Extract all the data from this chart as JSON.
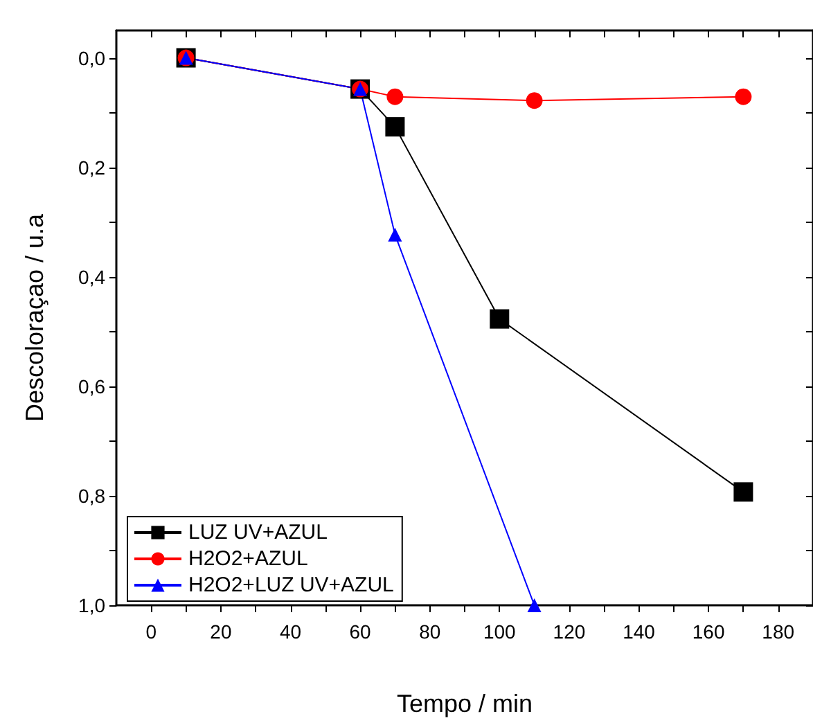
{
  "chart_data": {
    "type": "line",
    "xlabel": "Tempo / min",
    "ylabel": "Descoloraçao / u.a",
    "xlim": [
      -10,
      190
    ],
    "xticks": [
      0,
      20,
      40,
      60,
      80,
      100,
      120,
      140,
      160,
      180,
      {
        "value": 10,
        "label": null
      },
      {
        "value": 30,
        "label": null
      },
      {
        "value": 50,
        "label": null
      },
      {
        "value": 70,
        "label": null
      },
      {
        "value": 90,
        "label": null
      },
      {
        "value": 110,
        "label": null
      },
      {
        "value": 130,
        "label": null
      },
      {
        "value": 150,
        "label": null
      },
      {
        "value": 170,
        "label": null
      }
    ],
    "ylim": [
      1.0,
      -0.05
    ],
    "yticks": [
      {
        "value": 0,
        "label": "0,0"
      },
      {
        "value": 0.2,
        "label": "0,2"
      },
      {
        "value": 0.4,
        "label": "0,4"
      },
      {
        "value": 0.6,
        "label": "0,6"
      },
      {
        "value": 0.8,
        "label": "0,8"
      },
      {
        "value": 1.0,
        "label": "1,0"
      },
      {
        "value": 0.1,
        "label": null
      },
      {
        "value": 0.3,
        "label": null
      },
      {
        "value": 0.5,
        "label": null
      },
      {
        "value": 0.7,
        "label": null
      },
      {
        "value": 0.9,
        "label": null
      }
    ],
    "grid": false,
    "legend": "bottom left",
    "line_style": "solid",
    "series": [
      {
        "name": "LUZ UV+AZUL",
        "color": "#000000",
        "marker": "square",
        "x": [
          10,
          60,
          70,
          100,
          170
        ],
        "values": [
          0,
          0.057,
          0.126,
          0.477,
          0.793
        ]
      },
      {
        "name": "H2O2+AZUL",
        "color": "#ff0000",
        "marker": "circle",
        "x": [
          10,
          60,
          70,
          110,
          170
        ],
        "values": [
          0,
          0.057,
          0.071,
          0.078,
          0.071
        ]
      },
      {
        "name": "H2O2+LUZ UV+AZUL",
        "color": "#0000ff",
        "marker": "triangle",
        "x": [
          10,
          60,
          70,
          110
        ],
        "values": [
          0,
          0.057,
          0.323,
          1.0
        ]
      }
    ]
  }
}
